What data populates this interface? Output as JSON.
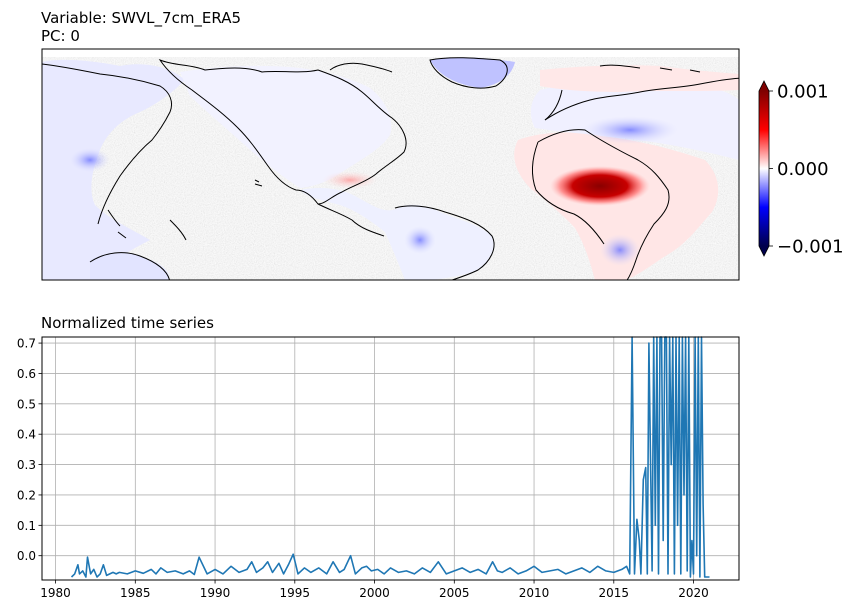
{
  "map_panel": {
    "title_line1": "Variable: SWVL_7cm_ERA5",
    "title_line2": "PC: 0"
  },
  "colorbar": {
    "colormap": "seismic",
    "colors": [
      "#00004c",
      "#0000ff",
      "#ffffff",
      "#ff0000",
      "#7f0000"
    ],
    "extend": "both",
    "vmin": -0.001,
    "vmax": 0.001,
    "ticks": [
      {
        "value": 0.001,
        "label": "0.001"
      },
      {
        "value": 0,
        "label": "0.000"
      },
      {
        "value": -0.001,
        "label": "−0.001"
      }
    ]
  },
  "chart_data": {
    "type": "line",
    "title": "Normalized time series",
    "xlabel": "",
    "ylabel": "",
    "xlim": [
      1979.15,
      2022.85
    ],
    "ylim": [
      -0.08,
      0.72
    ],
    "grid": true,
    "line_color": "#1f77b4",
    "x_ticks": [
      1980,
      1985,
      1990,
      1995,
      2000,
      2005,
      2010,
      2015,
      2020
    ],
    "x_tick_labels": [
      "1980",
      "1985",
      "1990",
      "1995",
      "2000",
      "2005",
      "2010",
      "2015",
      "2020"
    ],
    "y_ticks": [
      0.0,
      0.1,
      0.2,
      0.3,
      0.4,
      0.5,
      0.6,
      0.7
    ],
    "y_tick_labels": [
      "0.0",
      "0.1",
      "0.2",
      "0.3",
      "0.4",
      "0.5",
      "0.6",
      "0.7"
    ],
    "series": [
      {
        "x": [
          1981.0,
          1981.2,
          1981.4,
          1981.5,
          1981.7,
          1981.9,
          1982.0,
          1982.2,
          1982.4,
          1982.6,
          1982.8,
          1983.0,
          1983.2,
          1983.4,
          1983.6,
          1983.8,
          1984.0,
          1984.5,
          1985.0,
          1985.5,
          1986.0,
          1986.3,
          1986.6,
          1987.0,
          1987.5,
          1988.0,
          1988.4,
          1988.7,
          1989.0,
          1989.5,
          1990.0,
          1990.5,
          1991.0,
          1991.5,
          1992.0,
          1992.3,
          1992.6,
          1993.0,
          1993.3,
          1993.6,
          1994.0,
          1994.3,
          1994.6,
          1994.9,
          1995.2,
          1995.6,
          1996.0,
          1996.5,
          1997.0,
          1997.4,
          1997.8,
          1998.1,
          1998.5,
          1998.8,
          1999.2,
          1999.5,
          1999.8,
          2000.2,
          2000.6,
          2001.0,
          2001.5,
          2002.0,
          2002.5,
          2003.0,
          2003.5,
          2004.0,
          2004.5,
          2005.0,
          2005.5,
          2006.0,
          2006.5,
          2007.0,
          2007.4,
          2007.7,
          2008.0,
          2008.5,
          2009.0,
          2009.5,
          2010.0,
          2010.5,
          2011.0,
          2011.5,
          2012.0,
          2012.5,
          2013.0,
          2013.5,
          2014.0,
          2014.5,
          2015.0,
          2015.5,
          2015.8,
          2016.0,
          2016.15,
          2016.3,
          2016.45,
          2016.6,
          2016.7,
          2016.85,
          2017.0,
          2017.1,
          2017.2,
          2017.3,
          2017.4,
          2017.5,
          2017.6,
          2017.7,
          2017.8,
          2017.9,
          2018.0,
          2018.1,
          2018.2,
          2018.3,
          2018.4,
          2018.5,
          2018.6,
          2018.7,
          2018.8,
          2018.9,
          2019.0,
          2019.1,
          2019.2,
          2019.3,
          2019.4,
          2019.5,
          2019.6,
          2019.7,
          2019.8,
          2019.9,
          2020.0,
          2020.1,
          2020.2,
          2020.3,
          2020.4,
          2020.5,
          2020.6,
          2020.7,
          2020.8,
          2020.9,
          2021.0
        ],
        "y": [
          -0.07,
          -0.06,
          -0.03,
          -0.06,
          -0.05,
          -0.07,
          -0.005,
          -0.06,
          -0.045,
          -0.07,
          -0.06,
          -0.03,
          -0.065,
          -0.06,
          -0.055,
          -0.06,
          -0.055,
          -0.06,
          -0.05,
          -0.058,
          -0.045,
          -0.06,
          -0.04,
          -0.055,
          -0.05,
          -0.06,
          -0.05,
          -0.062,
          -0.005,
          -0.06,
          -0.045,
          -0.06,
          -0.035,
          -0.055,
          -0.045,
          -0.02,
          -0.055,
          -0.04,
          -0.02,
          -0.055,
          -0.025,
          -0.06,
          -0.03,
          0.005,
          -0.06,
          -0.04,
          -0.055,
          -0.04,
          -0.06,
          -0.02,
          -0.055,
          -0.045,
          0.0,
          -0.06,
          -0.04,
          -0.035,
          -0.05,
          -0.045,
          -0.06,
          -0.04,
          -0.055,
          -0.05,
          -0.06,
          -0.04,
          -0.055,
          -0.02,
          -0.06,
          -0.05,
          -0.04,
          -0.055,
          -0.045,
          -0.06,
          -0.02,
          -0.05,
          -0.055,
          -0.04,
          -0.06,
          -0.05,
          -0.035,
          -0.055,
          -0.05,
          -0.045,
          -0.06,
          -0.05,
          -0.04,
          -0.055,
          -0.035,
          -0.05,
          -0.055,
          -0.045,
          -0.035,
          -0.06,
          0.72,
          -0.06,
          0.12,
          0.05,
          -0.06,
          0.25,
          0.29,
          -0.06,
          0.7,
          0.32,
          -0.05,
          0.72,
          0.1,
          0.72,
          -0.06,
          0.72,
          0.72,
          0.05,
          0.72,
          0.72,
          -0.06,
          0.72,
          0.3,
          0.72,
          -0.06,
          0.72,
          0.1,
          0.72,
          -0.06,
          0.72,
          0.2,
          0.72,
          -0.05,
          0.72,
          -0.07,
          0.05,
          -0.06,
          0.72,
          0.0,
          0.72,
          -0.07,
          0.72,
          0.17,
          -0.07,
          -0.07,
          -0.07,
          -0.07
        ]
      }
    ]
  }
}
